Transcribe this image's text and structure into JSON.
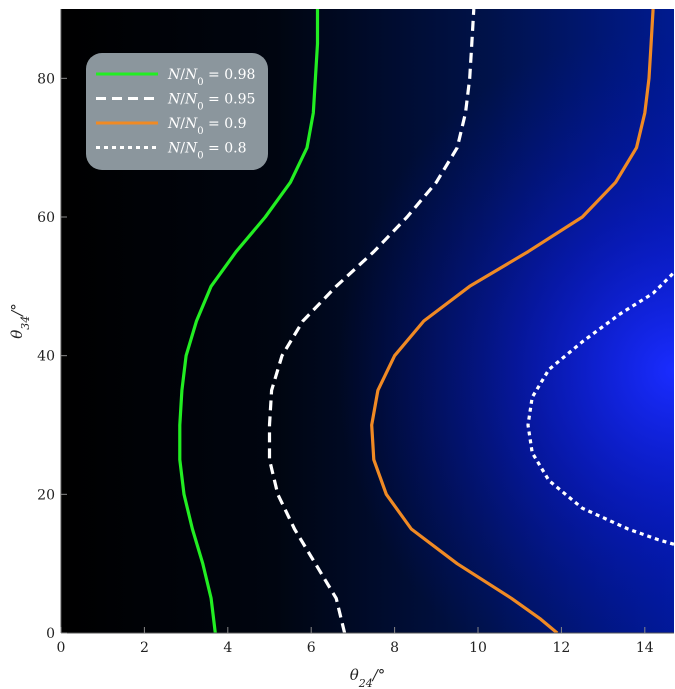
{
  "chart_data": {
    "type": "contour",
    "xlabel": "θ24/°",
    "ylabel": "θ34/°",
    "xlim": [
      0,
      14.7
    ],
    "ylim": [
      0,
      90
    ],
    "xticks": [
      0,
      2,
      4,
      6,
      8,
      10,
      12,
      14
    ],
    "yticks": [
      0,
      20,
      40,
      60,
      80
    ],
    "grid": false,
    "legend_placement": "top-left",
    "background": {
      "description": "density shading from black to blue increasing with θ24",
      "colors": [
        "#000000",
        "#000826",
        "#001070",
        "#0a1ce8"
      ]
    },
    "series": [
      {
        "name": "N/N0 = 0.98",
        "level": 0.98,
        "color": "#22ee22",
        "style": "solid",
        "points": [
          [
            3.7,
            0
          ],
          [
            3.6,
            5
          ],
          [
            3.4,
            10
          ],
          [
            3.15,
            15
          ],
          [
            2.95,
            20
          ],
          [
            2.85,
            25
          ],
          [
            2.85,
            30
          ],
          [
            2.9,
            35
          ],
          [
            3.0,
            40
          ],
          [
            3.25,
            45
          ],
          [
            3.6,
            50
          ],
          [
            4.2,
            55
          ],
          [
            4.9,
            60
          ],
          [
            5.5,
            65
          ],
          [
            5.9,
            70
          ],
          [
            6.05,
            75
          ],
          [
            6.1,
            80
          ],
          [
            6.15,
            85
          ],
          [
            6.15,
            90
          ]
        ]
      },
      {
        "name": "N/N0 = 0.95",
        "level": 0.95,
        "color": "#ffffff",
        "style": "dashed",
        "points": [
          [
            6.8,
            0
          ],
          [
            6.6,
            5
          ],
          [
            6.1,
            10
          ],
          [
            5.6,
            15
          ],
          [
            5.2,
            20
          ],
          [
            5.0,
            25
          ],
          [
            5.0,
            30
          ],
          [
            5.05,
            35
          ],
          [
            5.3,
            40
          ],
          [
            5.8,
            45
          ],
          [
            6.6,
            50
          ],
          [
            7.5,
            55
          ],
          [
            8.3,
            60
          ],
          [
            9.0,
            65
          ],
          [
            9.5,
            70
          ],
          [
            9.7,
            75
          ],
          [
            9.8,
            80
          ],
          [
            9.85,
            85
          ],
          [
            9.9,
            90
          ]
        ]
      },
      {
        "name": "N/N0 = 0.9",
        "level": 0.9,
        "color": "#f08a24",
        "style": "solid",
        "points": [
          [
            11.9,
            0
          ],
          [
            11.5,
            2
          ],
          [
            10.8,
            5
          ],
          [
            9.5,
            10
          ],
          [
            8.4,
            15
          ],
          [
            7.8,
            20
          ],
          [
            7.5,
            25
          ],
          [
            7.45,
            30
          ],
          [
            7.6,
            35
          ],
          [
            8.0,
            40
          ],
          [
            8.7,
            45
          ],
          [
            9.8,
            50
          ],
          [
            11.2,
            55
          ],
          [
            12.5,
            60
          ],
          [
            13.3,
            65
          ],
          [
            13.8,
            70
          ],
          [
            14.0,
            75
          ],
          [
            14.1,
            80
          ],
          [
            14.15,
            85
          ],
          [
            14.2,
            90
          ]
        ]
      },
      {
        "name": "N/N0 = 0.8",
        "level": 0.8,
        "color": "#ffffff",
        "style": "dotted",
        "points": [
          [
            14.7,
            12.8
          ],
          [
            14.3,
            13.5
          ],
          [
            13.6,
            15
          ],
          [
            12.5,
            18
          ],
          [
            11.7,
            22
          ],
          [
            11.3,
            26
          ],
          [
            11.2,
            30
          ],
          [
            11.3,
            34
          ],
          [
            11.7,
            38
          ],
          [
            12.5,
            42
          ],
          [
            13.4,
            46
          ],
          [
            14.2,
            49
          ],
          [
            14.7,
            52
          ]
        ]
      }
    ]
  }
}
